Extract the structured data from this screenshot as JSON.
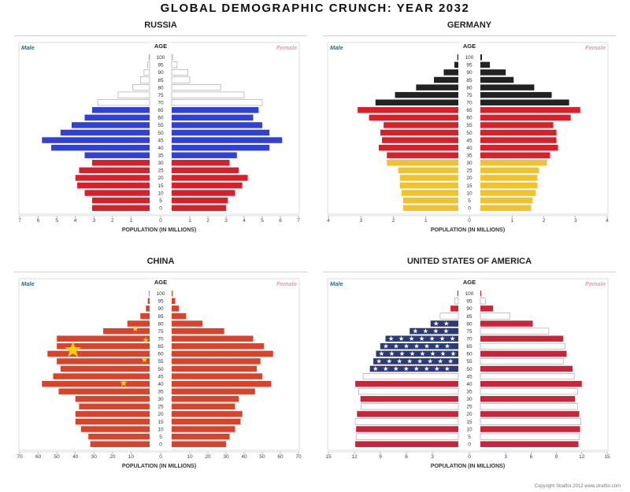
{
  "page": {
    "title": "GLOBAL DEMOGRAPHIC CRUNCH: YEAR 2032",
    "copyright": "Copyright Stratfor 2012   www.stratfor.com"
  },
  "chart_data": [
    {
      "type": "bar",
      "title": "RUSSIA",
      "xlabel": "POPULATION (IN MILLIONS)",
      "center_label": "AGE",
      "male_label": "Male",
      "female_label": "Female",
      "age_groups": [
        "0",
        "5",
        "10",
        "15",
        "20",
        "25",
        "30",
        "35",
        "40",
        "45",
        "50",
        "55",
        "60",
        "65",
        "70",
        "75",
        "80",
        "85",
        "90",
        "95",
        "100"
      ],
      "xlim": [
        0,
        7
      ],
      "xticks": [
        7,
        6,
        5,
        4,
        3,
        2,
        1,
        0,
        1,
        2,
        3,
        4,
        5,
        6,
        7
      ],
      "male": [
        3.1,
        3.1,
        3.5,
        3.9,
        4.0,
        3.8,
        3.1,
        3.5,
        5.3,
        5.8,
        4.8,
        4.2,
        3.5,
        3.1,
        2.8,
        1.7,
        0.9,
        0.5,
        0.3,
        0.1,
        0.02
      ],
      "female": [
        3.0,
        3.1,
        3.5,
        3.9,
        4.2,
        3.7,
        3.2,
        3.6,
        5.4,
        6.1,
        5.4,
        5.0,
        4.5,
        4.8,
        5.0,
        4.0,
        2.7,
        1.0,
        0.9,
        0.3,
        0.05
      ],
      "colors": {
        "white": "#ffffff",
        "blue": "#3140d6",
        "red": "#d8202a"
      }
    },
    {
      "type": "bar",
      "title": "GERMANY",
      "xlabel": "POPULATION (IN MILLIONS)",
      "center_label": "AGE",
      "male_label": "Male",
      "female_label": "Female",
      "age_groups": [
        "0",
        "5",
        "10",
        "15",
        "20",
        "25",
        "30",
        "35",
        "40",
        "45",
        "50",
        "55",
        "60",
        "65",
        "70",
        "75",
        "80",
        "85",
        "90",
        "95",
        "100"
      ],
      "xlim": [
        0,
        4
      ],
      "xticks": [
        4,
        3,
        2,
        1,
        0,
        1,
        2,
        3,
        4
      ],
      "male": [
        1.7,
        1.7,
        1.75,
        1.8,
        1.8,
        1.85,
        2.2,
        2.2,
        2.45,
        2.35,
        2.4,
        2.3,
        2.75,
        3.1,
        2.55,
        1.95,
        1.3,
        0.75,
        0.45,
        0.12,
        0.03
      ],
      "female": [
        1.6,
        1.65,
        1.75,
        1.8,
        1.8,
        1.85,
        2.1,
        2.2,
        2.45,
        2.4,
        2.4,
        2.3,
        2.85,
        3.15,
        2.8,
        2.25,
        1.7,
        1.05,
        0.8,
        0.3,
        0.05
      ],
      "colors": {
        "black": "#222222",
        "red": "#d8202a",
        "gold": "#f2c12e"
      }
    },
    {
      "type": "bar",
      "title": "CHINA",
      "xlabel": "POPULATION (IN MILLIONS)",
      "center_label": "AGE",
      "male_label": "Male",
      "female_label": "Female",
      "age_groups": [
        "0",
        "5",
        "10",
        "15",
        "20",
        "25",
        "30",
        "35",
        "40",
        "45",
        "50",
        "55",
        "60",
        "65",
        "70",
        "75",
        "80",
        "85",
        "90",
        "95",
        "100"
      ],
      "xlim": [
        0,
        70
      ],
      "xticks": [
        70,
        60,
        50,
        40,
        30,
        20,
        10,
        0,
        10,
        20,
        30,
        40,
        50,
        60,
        70
      ],
      "male": [
        32,
        33,
        37,
        40,
        40,
        38,
        40,
        49,
        58,
        52,
        48,
        50,
        55,
        50,
        50,
        25,
        12,
        5,
        2,
        1,
        0.3
      ],
      "female": [
        30,
        32,
        35,
        38,
        39,
        35,
        37,
        46,
        55,
        50,
        47,
        49,
        56,
        51,
        45,
        29,
        17,
        8,
        4,
        2,
        0.5
      ],
      "colors": {
        "red": "#d9432b",
        "yellow": "#f5d116"
      }
    },
    {
      "type": "bar",
      "title": "UNITED STATES OF AMERICA",
      "xlabel": "POPULATION (IN MILLIONS)",
      "center_label": "AGE",
      "male_label": "Male",
      "female_label": "Female",
      "age_groups": [
        "0",
        "5",
        "10",
        "15",
        "20",
        "25",
        "30",
        "35",
        "40",
        "45",
        "50",
        "55",
        "60",
        "65",
        "70",
        "75",
        "80",
        "85",
        "90",
        "95",
        "100"
      ],
      "xlim": [
        0,
        15
      ],
      "xticks": [
        15,
        12,
        9,
        6,
        3,
        0,
        3,
        6,
        9,
        12,
        15
      ],
      "male": [
        11.9,
        11.8,
        11.8,
        11.9,
        11.7,
        11.2,
        11.3,
        11.5,
        11.9,
        11.0,
        10.2,
        9.8,
        9.5,
        9.0,
        8.4,
        5.6,
        3.2,
        2.1,
        0.9,
        0.4,
        0.1
      ],
      "female": [
        11.6,
        11.7,
        11.8,
        11.9,
        11.7,
        11.5,
        11.2,
        11.5,
        12.0,
        11.1,
        10.9,
        9.8,
        10.2,
        10.0,
        9.8,
        8.1,
        6.2,
        3.5,
        1.5,
        0.6,
        0.1
      ],
      "colors": {
        "red": "#c8243a",
        "white": "#ffffff",
        "blue": "#2b3a78"
      }
    }
  ]
}
